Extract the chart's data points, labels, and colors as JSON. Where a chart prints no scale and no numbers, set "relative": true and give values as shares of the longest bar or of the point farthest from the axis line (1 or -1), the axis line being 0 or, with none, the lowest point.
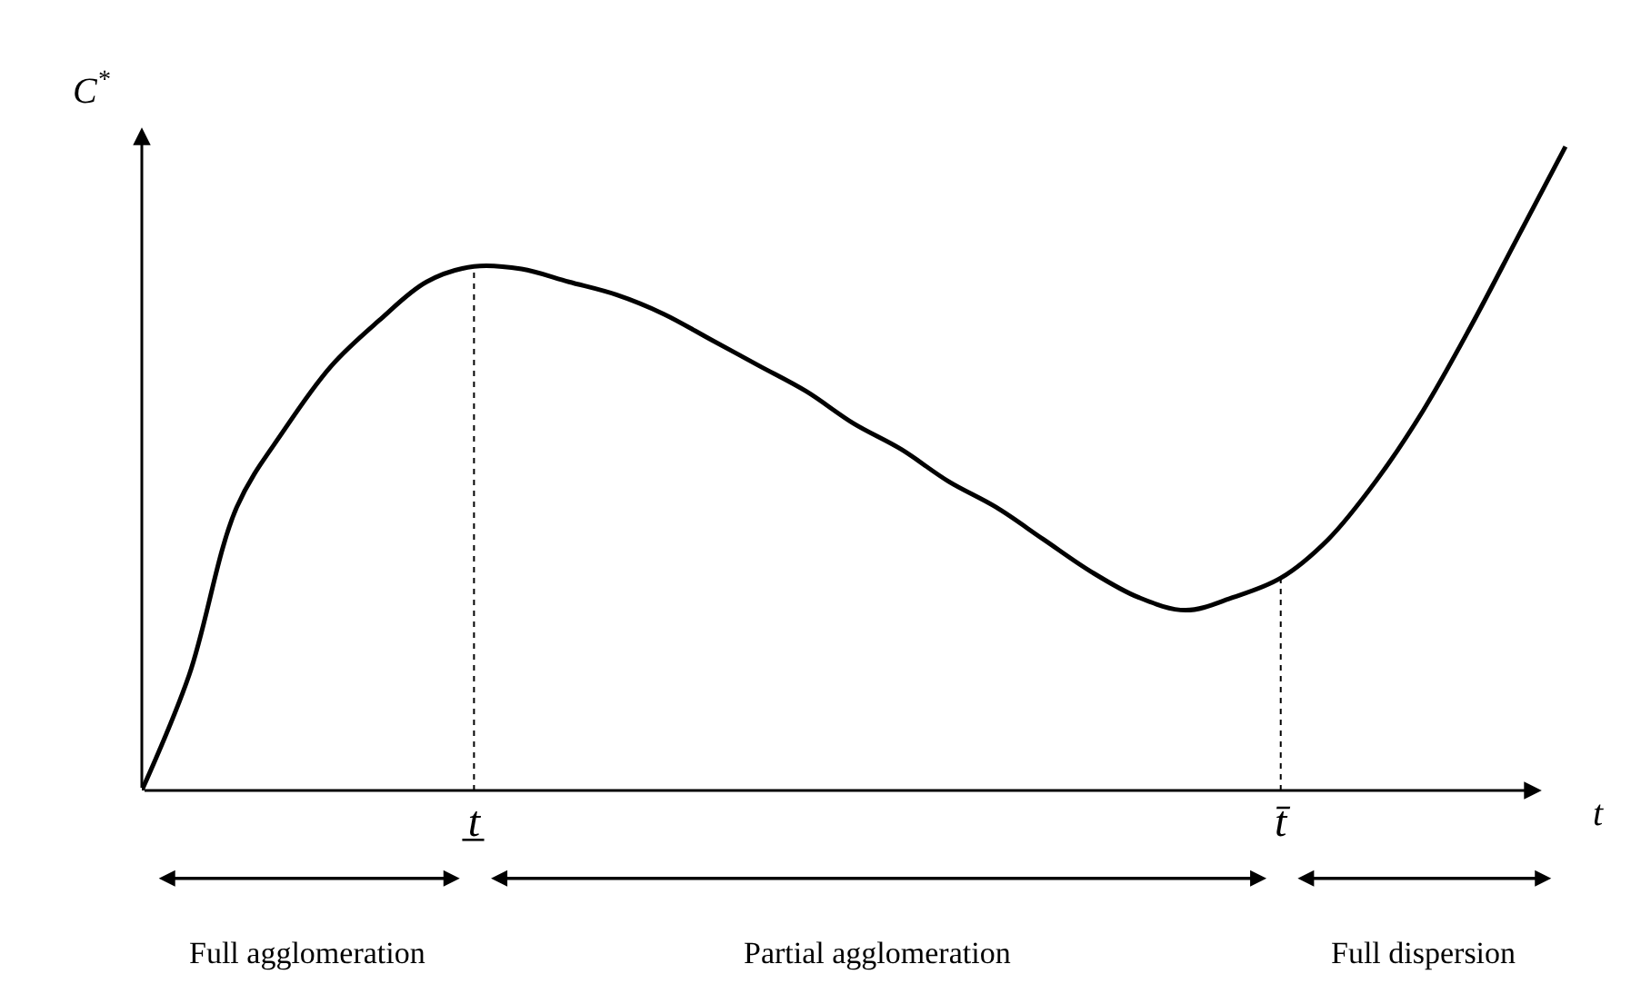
{
  "chart_data": {
    "type": "line",
    "relative": true,
    "ylabel": "C$^{*}$",
    "xlabel": "t",
    "categories": [
      null,
      null,
      null,
      null,
      null,
      null,
      null,
      "t̲",
      null,
      null,
      null,
      null,
      null,
      null,
      null,
      null,
      null,
      null,
      null,
      null,
      null,
      null,
      null,
      null,
      "t̄",
      null,
      null,
      null,
      null,
      null,
      null
    ],
    "series": [
      {
        "color": "#000000",
        "values": [
          0,
          0.18,
          0.44,
          0.56,
          0.66,
          0.73,
          0.79,
          0.814,
          0.81,
          0.79,
          0.77,
          0.74,
          0.7,
          0.66,
          0.62,
          0.57,
          0.53,
          0.48,
          0.44,
          0.39,
          0.34,
          0.3,
          0.28,
          0.3,
          0.33,
          0.39,
          0.48,
          0.59,
          0.72,
          0.86,
          1
        ]
      }
    ],
    "marker": "none",
    "line_style": "solid",
    "ref_lines": [
      {
        "axis": "x",
        "value": "t̲",
        "line_style": "dotted",
        "color": "#000000"
      },
      {
        "axis": "x",
        "value": "t̄",
        "line_style": "dotted",
        "color": "#000000"
      }
    ],
    "annotations": [
      "Full agglomeration",
      "Partial agglomeration",
      "Full dispersion"
    ]
  }
}
